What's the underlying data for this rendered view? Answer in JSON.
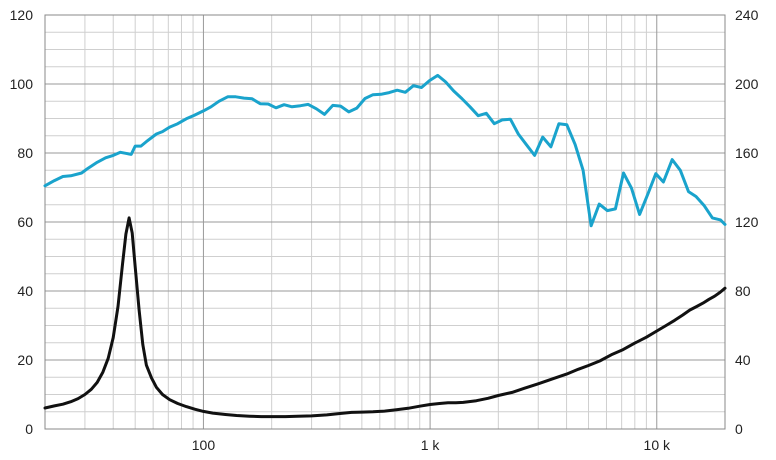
{
  "chart_data": {
    "type": "line",
    "title": "",
    "x_scale": "log",
    "xlim": [
      20,
      20000
    ],
    "grid": true,
    "x_ticks": [
      {
        "value": 100,
        "label": "100"
      },
      {
        "value": 1000,
        "label": "1 k"
      },
      {
        "value": 10000,
        "label": "10 k"
      }
    ],
    "y_left": {
      "ylim": [
        0,
        120
      ],
      "ticks": [
        0,
        20,
        40,
        60,
        80,
        100,
        120
      ]
    },
    "y_right": {
      "ylim": [
        0,
        240
      ],
      "ticks": [
        0,
        40,
        80,
        120,
        160,
        200,
        240
      ]
    },
    "series": [
      {
        "axis": "left",
        "color": "#1aa3cc",
        "x": [
          20,
          22,
          24,
          26,
          29,
          31,
          34,
          37,
          40,
          43,
          48,
          50,
          53,
          56,
          62,
          66,
          71,
          77,
          84,
          91,
          100,
          108,
          117,
          128,
          139,
          151,
          164,
          178,
          193,
          209,
          227,
          246,
          268,
          290,
          315,
          342,
          372,
          403,
          438,
          475,
          516,
          560,
          608,
          660,
          716,
          777,
          844,
          916,
          994,
          1080,
          1170,
          1270,
          1380,
          1500,
          1630,
          1770,
          1920,
          2080,
          2260,
          2450,
          2660,
          2890,
          3140,
          3410,
          3700,
          4010,
          4360,
          4730,
          5130,
          5570,
          6050,
          6570,
          7130,
          7740,
          8400,
          9120,
          9900,
          10700,
          11700,
          12700,
          13800,
          14900,
          16200,
          17600,
          19100,
          20000
        ],
        "values": [
          70.5,
          72,
          73.2,
          73.4,
          74.2,
          75.6,
          77.3,
          78.6,
          79.3,
          80.2,
          79.6,
          82,
          82,
          83.3,
          85.5,
          86.2,
          87.5,
          88.5,
          89.9,
          90.9,
          92.2,
          93.4,
          95,
          96.3,
          96.3,
          95.9,
          95.7,
          94.3,
          94.2,
          93.1,
          94,
          93.4,
          93.7,
          94.1,
          92.8,
          91.2,
          93.8,
          93.6,
          91.9,
          93,
          95.8,
          96.9,
          97,
          97.5,
          98.2,
          97.6,
          99.5,
          99,
          101,
          102.5,
          100.6,
          98,
          95.8,
          93.4,
          90.8,
          91.5,
          88.5,
          89.6,
          89.8,
          85.5,
          82.4,
          79.3,
          84.6,
          81.8,
          88.5,
          88.2,
          82.5,
          75,
          58.9,
          65.2,
          63.3,
          63.8,
          74.2,
          69.8,
          62.2,
          68,
          74,
          71.6,
          78.1,
          75,
          68.8,
          67.4,
          64.7,
          61.2,
          60.6,
          59.3
        ]
      },
      {
        "axis": "left",
        "color": "#111111",
        "x": [
          20,
          22,
          24,
          26,
          28,
          30,
          32,
          34,
          36,
          38,
          40,
          42,
          44,
          45.5,
          47,
          48.5,
          50,
          52,
          54,
          56,
          59,
          62,
          66,
          71,
          77,
          84,
          92,
          100,
          110,
          125,
          140,
          160,
          180,
          200,
          230,
          260,
          300,
          350,
          400,
          450,
          500,
          560,
          630,
          710,
          800,
          900,
          1000,
          1100,
          1200,
          1300,
          1400,
          1600,
          1800,
          2000,
          2300,
          2600,
          3000,
          3500,
          4000,
          4500,
          5000,
          5600,
          6300,
          7100,
          8000,
          9000,
          10000,
          11000,
          12000,
          13000,
          14000,
          15000,
          16000,
          17000,
          18000,
          19000,
          20000
        ],
        "values": [
          6.1,
          6.7,
          7.2,
          7.9,
          8.8,
          10,
          11.5,
          13.5,
          16.5,
          20.5,
          26.5,
          35.5,
          48,
          56.5,
          61.2,
          56.8,
          47,
          34.5,
          24.5,
          18.5,
          14.8,
          12.1,
          10,
          8.5,
          7.4,
          6.5,
          5.7,
          5.1,
          4.6,
          4.2,
          3.9,
          3.7,
          3.6,
          3.6,
          3.6,
          3.7,
          3.8,
          4.1,
          4.5,
          4.8,
          4.9,
          5,
          5.2,
          5.6,
          6,
          6.6,
          7.1,
          7.4,
          7.6,
          7.6,
          7.7,
          8.2,
          8.9,
          9.7,
          10.6,
          11.8,
          13.1,
          14.6,
          15.9,
          17.3,
          18.4,
          19.7,
          21.5,
          23,
          24.9,
          26.6,
          28.4,
          30,
          31.5,
          33,
          34.5,
          35.5,
          36.5,
          37.6,
          38.5,
          39.6,
          40.8
        ]
      }
    ]
  }
}
